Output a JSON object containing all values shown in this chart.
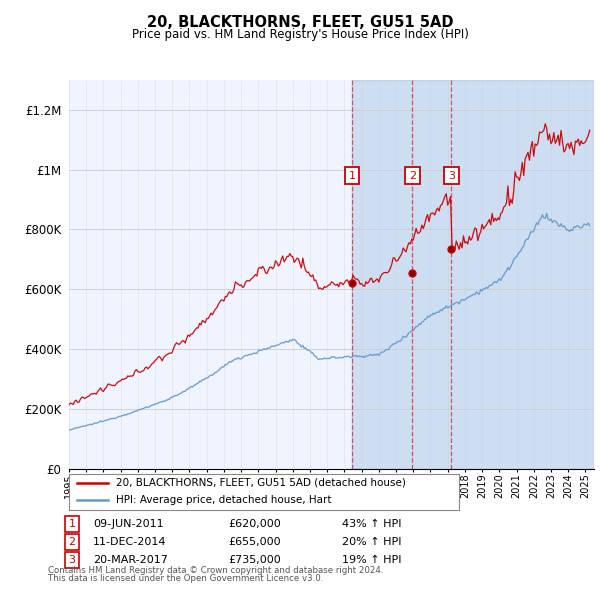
{
  "title": "20, BLACKTHORNS, FLEET, GU51 5AD",
  "subtitle": "Price paid vs. HM Land Registry's House Price Index (HPI)",
  "ylim": [
    0,
    1300000
  ],
  "xlim_start": 1995.0,
  "xlim_end": 2025.5,
  "legend_line1": "20, BLACKTHORNS, FLEET, GU51 5AD (detached house)",
  "legend_line2": "HPI: Average price, detached house, Hart",
  "transactions": [
    {
      "num": 1,
      "date": "09-JUN-2011",
      "price": 620000,
      "pct": "43%",
      "x": 2011.44
    },
    {
      "num": 2,
      "date": "11-DEC-2014",
      "price": 655000,
      "pct": "20%",
      "x": 2014.95
    },
    {
      "num": 3,
      "date": "20-MAR-2017",
      "price": 735000,
      "pct": "19%",
      "x": 2017.22
    }
  ],
  "footnote1": "Contains HM Land Registry data © Crown copyright and database right 2024.",
  "footnote2": "This data is licensed under the Open Government Licence v3.0.",
  "red_color": "#cc0000",
  "blue_color": "#6699cc",
  "shade_color": "#ddeeff",
  "background_color": "#ffffff",
  "grid_color": "#cccccc",
  "chart_bg": "#f0f4ff"
}
